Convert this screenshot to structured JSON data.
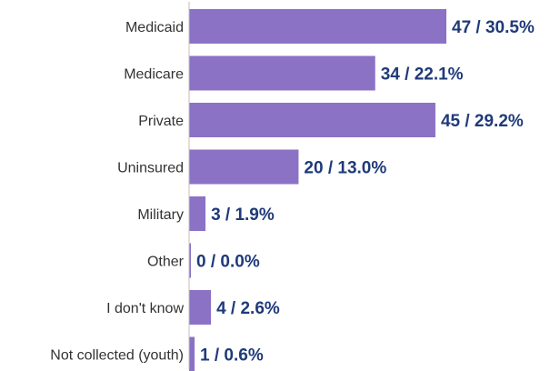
{
  "colors": {
    "bar": "#8b72c5",
    "value_text": "#1f3a7a",
    "label_text": "#333333",
    "axis": "#bfbfbf"
  },
  "chart_data": {
    "type": "bar",
    "orientation": "horizontal",
    "categories": [
      "Medicaid",
      "Medicare",
      "Private",
      "Uninsured",
      "Military",
      "Other",
      "I don't know",
      "Not collected (youth)"
    ],
    "values": [
      47,
      34,
      45,
      20,
      3,
      0,
      4,
      1
    ],
    "data_labels": [
      "47 / 30.5%",
      "34 / 22.1%",
      "45 / 29.2%",
      "20 / 13.0%",
      "3 / 1.9%",
      "0 / 0.0%",
      "4 / 2.6%",
      "1 / 0.6%"
    ],
    "xlim": [
      0,
      47
    ],
    "title": "",
    "xlabel": "",
    "ylabel": "",
    "grid": false,
    "legend": "none"
  }
}
